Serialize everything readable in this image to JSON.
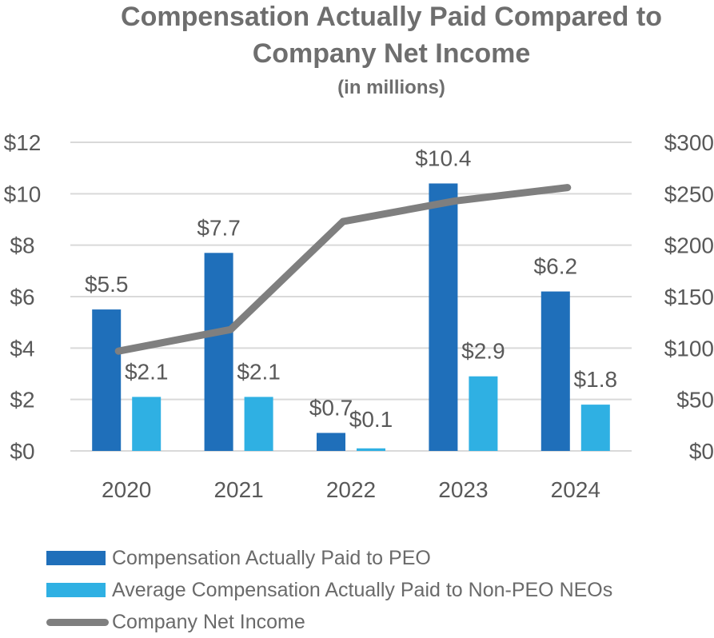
{
  "title": {
    "line1": "Compensation Actually Paid Compared to",
    "line2": "Company Net Income",
    "line3": "(in millions)"
  },
  "colors": {
    "peo": "#1f6fba",
    "non_peo": "#2fb0e3",
    "net_income": "#7f7f7f",
    "grid": "#d9d9d9",
    "tick_text": "#595959"
  },
  "chart_data": {
    "type": "bar",
    "title": "Compensation Actually Paid Compared to Company Net Income (in millions)",
    "categories": [
      "2020",
      "2021",
      "2022",
      "2023",
      "2024"
    ],
    "series": [
      {
        "name": "Compensation Actually Paid to PEO",
        "kind": "bar",
        "axis": "left",
        "values": [
          5.5,
          7.7,
          0.7,
          10.4,
          6.2
        ],
        "labels": [
          "$5.5",
          "$7.7",
          "$0.7",
          "$10.4",
          "$6.2"
        ]
      },
      {
        "name": "Average Compensation Actually Paid to Non-PEO NEOs",
        "kind": "bar",
        "axis": "left",
        "values": [
          2.1,
          2.1,
          0.1,
          2.9,
          1.8
        ],
        "labels": [
          "$2.1",
          "$2.1",
          "$0.1",
          "$2.9",
          "$1.8"
        ]
      },
      {
        "name": "Company Net Income",
        "kind": "line",
        "axis": "right",
        "values": [
          97,
          118,
          223,
          243,
          256
        ]
      }
    ],
    "left_axis": {
      "ylim": [
        0,
        12
      ],
      "ticks": [
        "$0",
        "$2",
        "$4",
        "$6",
        "$8",
        "$10",
        "$12"
      ]
    },
    "right_axis": {
      "ylim": [
        0,
        300
      ],
      "ticks": [
        "$0",
        "$50",
        "$100",
        "$150",
        "$200",
        "$250",
        "$300"
      ]
    },
    "grid": true,
    "legend_position": "bottom-left"
  },
  "legend": {
    "items": [
      "Compensation Actually Paid to PEO",
      "Average Compensation Actually Paid to Non-PEO NEOs",
      "Company Net Income"
    ]
  }
}
